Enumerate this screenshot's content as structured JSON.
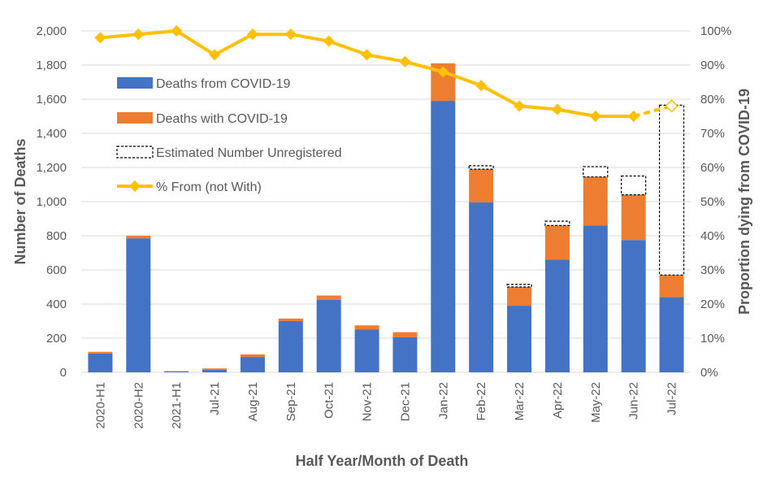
{
  "chart_data": {
    "type": "bar",
    "stacked": true,
    "categories": [
      "2020-H1",
      "2020-H2",
      "2021-H1",
      "Jul-21",
      "Aug-21",
      "Sep-21",
      "Oct-21",
      "Nov-21",
      "Dec-21",
      "Jan-22",
      "Feb-22",
      "Mar-22",
      "Apr-22",
      "May-22",
      "Jun-22",
      "Jul-22"
    ],
    "series": [
      {
        "name": "Deaths from COVID-19",
        "color": "#4472C4",
        "kind": "bar",
        "values": [
          110,
          785,
          5,
          15,
          90,
          300,
          425,
          250,
          205,
          1590,
          995,
          390,
          660,
          860,
          775,
          440
        ]
      },
      {
        "name": "Deaths with COVID-19",
        "color": "#ED7D31",
        "kind": "bar",
        "values": [
          10,
          15,
          2,
          8,
          15,
          15,
          25,
          25,
          30,
          220,
          195,
          110,
          200,
          285,
          265,
          130
        ]
      },
      {
        "name": "Estimated Number Unregistered",
        "color": "#000000",
        "kind": "bar-dashed",
        "values": [
          0,
          0,
          0,
          0,
          0,
          0,
          0,
          0,
          0,
          0,
          20,
          15,
          25,
          60,
          110,
          995
        ]
      },
      {
        "name": "% From (not With)",
        "color": "#FFC000",
        "kind": "line",
        "axis": "right",
        "values": [
          98,
          99,
          100,
          93,
          99,
          99,
          97,
          93,
          91,
          88,
          84,
          78,
          77,
          75,
          75,
          78
        ],
        "dashed_from_index": 14
      }
    ],
    "title": "",
    "xlabel": "Half Year/Month of Death",
    "ylabel": "Number of Deaths",
    "y2label": "Proportion dying from COVID-19",
    "ylim": [
      0,
      2000
    ],
    "y2lim": [
      0,
      100
    ],
    "yticks": [
      "0",
      "200",
      "400",
      "600",
      "800",
      "1,000",
      "1,200",
      "1,400",
      "1,600",
      "1,800",
      "2,000"
    ],
    "y2ticks": [
      "0%",
      "10%",
      "20%",
      "30%",
      "40%",
      "50%",
      "60%",
      "70%",
      "80%",
      "90%",
      "100%"
    ],
    "grid": true,
    "legend_position": "top-left"
  }
}
